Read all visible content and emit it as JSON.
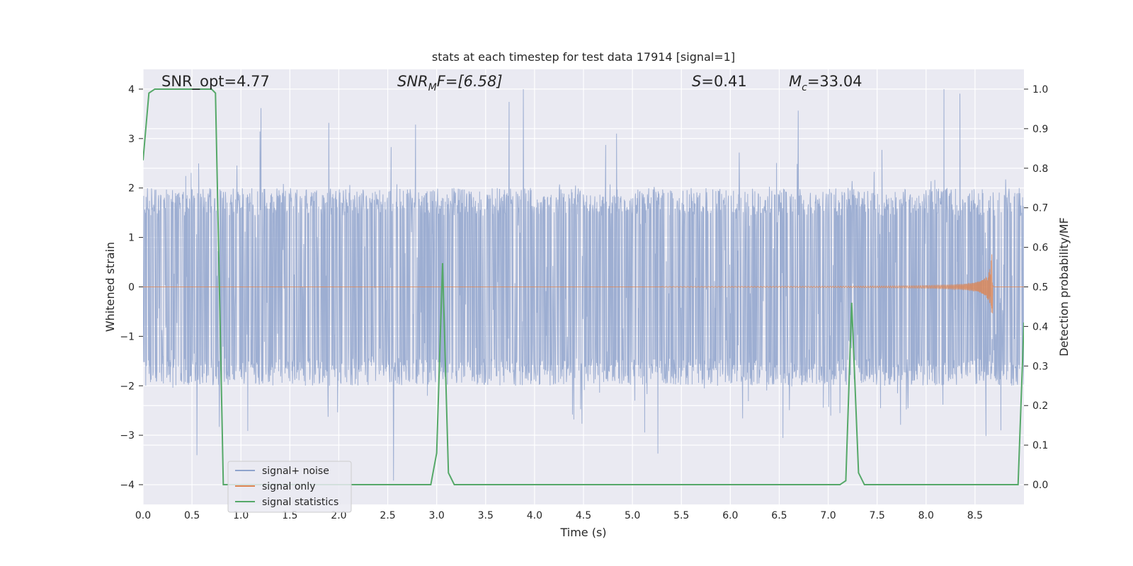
{
  "chart_data": {
    "type": "line",
    "title": "stats at each timestep for test data 17914 [signal=1]",
    "xlabel": "Time (s)",
    "ylabel_left": "Whitened strain",
    "ylabel_right": "Detection probability/MF",
    "xlim": [
      0.0,
      9.0
    ],
    "ylim_left": [
      -4.4,
      4.4
    ],
    "ylim_right": [
      -0.05,
      1.05
    ],
    "xticks": [
      0.0,
      0.5,
      1.0,
      1.5,
      2.0,
      2.5,
      3.0,
      3.5,
      4.0,
      4.5,
      5.0,
      5.5,
      6.0,
      6.5,
      7.0,
      7.5,
      8.0,
      8.5
    ],
    "xtick_labels": [
      "0.0",
      "0.5",
      "1.0",
      "1.5",
      "2.0",
      "2.5",
      "3.0",
      "3.5",
      "4.0",
      "4.5",
      "5.0",
      "5.5",
      "6.0",
      "6.5",
      "7.0",
      "7.5",
      "8.0",
      "8.5"
    ],
    "yticks_left": [
      -4,
      -3,
      -2,
      -1,
      0,
      1,
      2,
      3,
      4
    ],
    "ytick_labels_left": [
      "−4",
      "−3",
      "−2",
      "−1",
      "0",
      "1",
      "2",
      "3",
      "4"
    ],
    "yticks_right": [
      0.0,
      0.1,
      0.2,
      0.3,
      0.4,
      0.5,
      0.6,
      0.7,
      0.8,
      0.9,
      1.0
    ],
    "ytick_labels_right": [
      "0.0",
      "0.1",
      "0.2",
      "0.3",
      "0.4",
      "0.5",
      "0.6",
      "0.7",
      "0.8",
      "0.9",
      "1.0"
    ],
    "grid": true,
    "legend_placement": "lower-left",
    "annotations": {
      "snr_opt": "SNR_opt=4.77",
      "snr_mf_main": "SNR",
      "snr_mf_sub": "M",
      "snr_mf_rest": "F=[6.58]",
      "s_main": "S",
      "s_rest": "=0.41",
      "mc_main": "M",
      "mc_sub": "c",
      "mc_rest": "=33.04"
    },
    "series": [
      {
        "name": "signal+ noise",
        "axis": "left",
        "color": "#8fa3cc",
        "envelope": {
          "base_amplitude": 1.6,
          "spike_max": 4.0,
          "t_end": 9.0
        }
      },
      {
        "name": "signal only",
        "axis": "left",
        "color": "#dd8452",
        "chirp": {
          "t_start": 5.3,
          "t_peak": 8.68,
          "peak_amplitude": 1.1
        }
      },
      {
        "name": "signal statistics",
        "axis": "right",
        "color": "#55a868",
        "x": [
          0.0,
          0.06,
          0.12,
          0.5,
          0.7,
          0.74,
          0.78,
          0.82,
          0.88,
          1.0,
          2.94,
          3.0,
          3.06,
          3.12,
          3.18,
          4.0,
          7.12,
          7.18,
          7.24,
          7.31,
          7.37,
          8.3,
          8.94,
          9.0
        ],
        "values": [
          0.82,
          0.99,
          1.0,
          1.0,
          1.0,
          0.99,
          0.5,
          0.0,
          0.0,
          0.0,
          0.0,
          0.08,
          0.56,
          0.03,
          0.0,
          0.0,
          0.0,
          0.01,
          0.46,
          0.03,
          0.0,
          0.0,
          0.0,
          0.41
        ]
      }
    ]
  }
}
